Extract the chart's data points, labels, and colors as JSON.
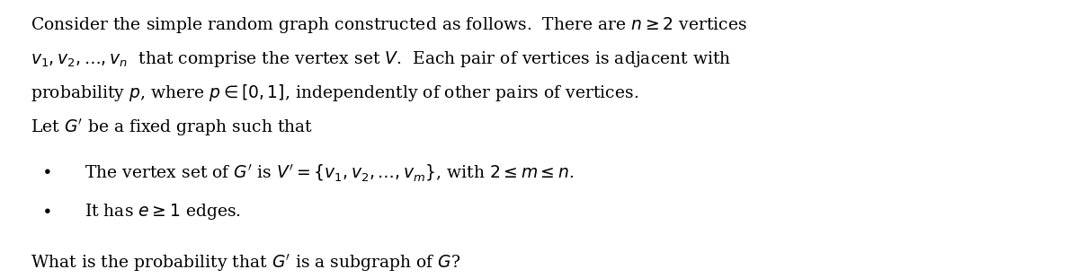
{
  "figsize": [
    12.0,
    3.1
  ],
  "dpi": 100,
  "background_color": "#ffffff",
  "text_color": "#000000",
  "font_size": 13.5,
  "line1": "Consider the simple random graph constructed as follows.  There are $n \\geq 2$ vertices",
  "line2": "$v_1, v_2, \\ldots, v_n$  that comprise the vertex set $V$.  Each pair of vertices is adjacent with",
  "line3": "probability $p$, where $p \\in [0, 1]$, independently of other pairs of vertices.",
  "line4": "Let $G'$ be a fixed graph such that",
  "bullet1": "The vertex set of $G'$ is $V' = \\{v_1, v_2, \\ldots, v_m\\}$, with $2 \\leq m \\leq n$.",
  "bullet2": "It has $e \\geq 1$ edges.",
  "line5": "What is the probability that $G'$ is a subgraph of $G$?"
}
